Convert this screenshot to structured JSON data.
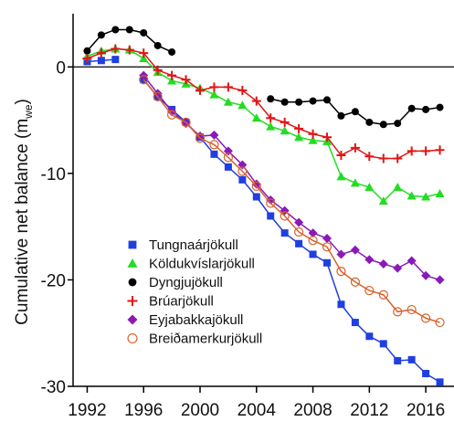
{
  "chart_data": {
    "type": "line",
    "y_label": {
      "text": "Cumulative net balance (m",
      "sub": "we",
      "tail": ")"
    },
    "x": [
      1992,
      1993,
      1994,
      1995,
      1996,
      1997,
      1998,
      1999,
      2000,
      2001,
      2002,
      2003,
      2004,
      2005,
      2006,
      2007,
      2008,
      2009,
      2010,
      2011,
      2012,
      2013,
      2014,
      2015,
      2016,
      2017
    ],
    "xlim": [
      1991,
      2018
    ],
    "xticks": [
      1992,
      1996,
      2000,
      2004,
      2008,
      2012,
      2016
    ],
    "ylim": [
      -30,
      5
    ],
    "yticks": [
      -30,
      -20,
      -10,
      0
    ],
    "zero_line": true,
    "legend": "lower-left",
    "series": [
      {
        "name": "Tungnaárjökull",
        "color": "#1f3fe0",
        "marker": "square",
        "values": [
          0.5,
          0.6,
          0.7,
          null,
          -1.2,
          -2.8,
          -4.0,
          -5.2,
          -6.6,
          -8.2,
          -9.4,
          -10.6,
          -12.2,
          -14.0,
          -15.6,
          -16.6,
          -17.6,
          -18.4,
          -22.3,
          -24.0,
          -25.3,
          -26.0,
          -27.6,
          -27.5,
          -28.8,
          -29.6
        ]
      },
      {
        "name": "Köldukvíslarjökull",
        "color": "#22dd22",
        "marker": "triangle",
        "values": [
          1.0,
          1.5,
          1.7,
          1.6,
          0.8,
          -0.5,
          -1.3,
          -1.6,
          -2.0,
          -2.6,
          -3.3,
          -3.6,
          -4.8,
          -5.6,
          -6.0,
          -6.6,
          -6.9,
          -7.0,
          -10.3,
          -10.9,
          -11.3,
          -12.6,
          -11.3,
          -12.1,
          -12.2,
          -11.9
        ]
      },
      {
        "name": "Dyngjujökull",
        "color": "#000000",
        "marker": "circle",
        "values": [
          1.5,
          3.0,
          3.5,
          3.5,
          3.2,
          2.0,
          1.4,
          null,
          null,
          null,
          null,
          null,
          null,
          -3.0,
          -3.3,
          -3.3,
          -3.2,
          -3.1,
          -4.6,
          -4.2,
          -5.2,
          -5.4,
          -5.3,
          -3.9,
          -4.0,
          -3.8
        ]
      },
      {
        "name": "Brúarjökull",
        "color": "#e01515",
        "marker": "plus",
        "values": [
          0.8,
          1.3,
          1.7,
          1.6,
          1.3,
          -0.3,
          -0.8,
          -1.2,
          -2.2,
          -1.9,
          -1.9,
          -2.2,
          -3.2,
          -4.8,
          -5.2,
          -5.8,
          -6.3,
          -6.6,
          -8.3,
          -7.6,
          -8.4,
          -8.6,
          -8.6,
          -7.9,
          -7.9,
          -7.8
        ]
      },
      {
        "name": "Eyjabakkajökull",
        "color": "#8a1ab8",
        "marker": "diamond",
        "values": [
          null,
          null,
          null,
          null,
          -0.8,
          -2.5,
          -4.2,
          -5.3,
          -6.5,
          -6.4,
          -7.9,
          -9.2,
          -11.0,
          -12.5,
          -13.5,
          -14.6,
          -15.6,
          -16.1,
          -17.6,
          -17.2,
          -18.1,
          -18.5,
          -18.9,
          -18.2,
          -19.6,
          -20.0
        ]
      },
      {
        "name": "Breiðamerkurjökull",
        "color": "#d9602a",
        "marker": "open-circle",
        "values": [
          null,
          null,
          null,
          null,
          -1.2,
          -2.8,
          -4.5,
          -5.2,
          -6.7,
          -7.3,
          -8.5,
          -9.8,
          -11.2,
          -12.8,
          -14.0,
          -15.5,
          -16.3,
          -16.9,
          -19.2,
          -20.2,
          -21.0,
          -21.4,
          -23.0,
          -22.8,
          -23.6,
          -24.0
        ]
      }
    ]
  }
}
